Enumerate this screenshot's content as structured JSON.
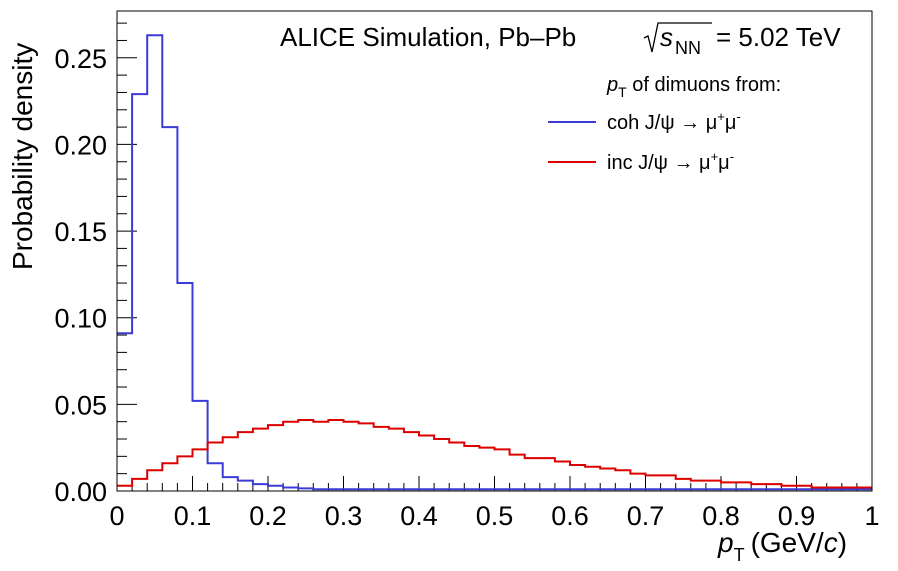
{
  "chart_data": {
    "type": "line",
    "title_parts": {
      "prefix": "ALICE Simulation, Pb–Pb",
      "sqrt": "√",
      "s": "s",
      "nn": "NN",
      "suffix": "= 5.02 TeV"
    },
    "xlabel_parts": {
      "p": "p",
      "sub": "T",
      "unit": "(GeV/",
      "c": "c",
      "close": ")"
    },
    "ylabel": "Probability density",
    "xlim": [
      0,
      1
    ],
    "ylim": [
      0,
      0.277
    ],
    "x_ticks": [
      "0",
      "0.1",
      "0.2",
      "0.3",
      "0.4",
      "0.5",
      "0.6",
      "0.7",
      "0.8",
      "0.9",
      "1"
    ],
    "y_ticks": [
      "0.00",
      "0.05",
      "0.10",
      "0.15",
      "0.20",
      "0.25"
    ],
    "legend": {
      "header_p": "p",
      "header_sub": "T",
      "header_rest": " of dimuons from:",
      "entries": [
        {
          "text_main": "coh J/ψ → μ",
          "sup1": "+",
          "mid": "μ",
          "sup2": "-",
          "color": "#3b3bd6"
        },
        {
          "text_main": "inc J/ψ → μ",
          "sup1": "+",
          "mid": "μ",
          "sup2": "-",
          "color": "#dd0000"
        }
      ]
    },
    "bin_width": 0.02,
    "series": [
      {
        "color": "#3b3bd6",
        "values": [
          0.091,
          0.229,
          0.263,
          0.21,
          0.12,
          0.052,
          0.016,
          0.008,
          0.006,
          0.004,
          0.003,
          0.002,
          0.0015,
          0.001,
          0.001,
          0.001,
          0.001,
          0.001,
          0.001,
          0.001,
          0.001,
          0.001,
          0.001,
          0.001,
          0.001,
          0.001,
          0.001,
          0.001,
          0.001,
          0.001,
          0.001,
          0.001,
          0.001,
          0.001,
          0.001,
          0.001,
          0.001,
          0.001,
          0.001,
          0.001,
          0.001,
          0.001,
          0.001,
          0.001,
          0.001,
          0.001,
          0.001,
          0.001,
          0.001,
          0.001
        ]
      },
      {
        "color": "#dd0000",
        "values": [
          0.003,
          0.007,
          0.012,
          0.016,
          0.02,
          0.024,
          0.028,
          0.031,
          0.034,
          0.036,
          0.038,
          0.04,
          0.041,
          0.04,
          0.041,
          0.04,
          0.039,
          0.037,
          0.036,
          0.034,
          0.032,
          0.03,
          0.028,
          0.026,
          0.025,
          0.024,
          0.021,
          0.019,
          0.019,
          0.017,
          0.015,
          0.014,
          0.013,
          0.012,
          0.01,
          0.009,
          0.009,
          0.007,
          0.006,
          0.006,
          0.005,
          0.005,
          0.004,
          0.004,
          0.003,
          0.003,
          0.002,
          0.002,
          0.002,
          0.002
        ]
      }
    ]
  }
}
